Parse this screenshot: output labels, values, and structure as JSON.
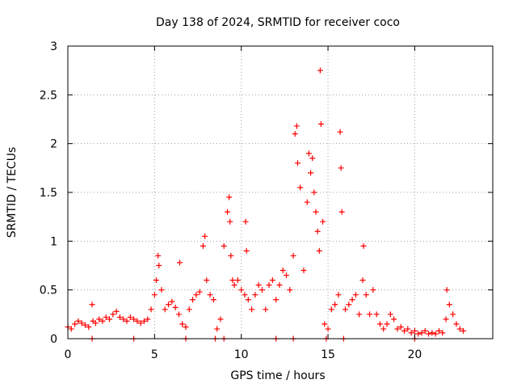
{
  "chart_data": {
    "type": "scatter",
    "title": "Day 138 of 2024, SRMTID for receiver coco",
    "xlabel": "GPS time / hours",
    "ylabel": "SRMTID / TECUs",
    "xlim": [
      0,
      24.5
    ],
    "ylim": [
      0,
      3
    ],
    "x_ticks": [
      0,
      5,
      10,
      15,
      20
    ],
    "x_tick_labels": [
      "0",
      "5",
      "10",
      "15",
      "20"
    ],
    "y_ticks": [
      0,
      0.5,
      1,
      1.5,
      2,
      2.5,
      3
    ],
    "y_tick_labels": [
      "0",
      "0.5",
      "1",
      "1.5",
      "2",
      "2.5",
      "3"
    ],
    "grid": true,
    "marker": "+",
    "color": "#ff0000",
    "series": [
      {
        "name": "SRMTID",
        "x": [
          0.0,
          0.2,
          0.4,
          0.6,
          0.8,
          1.0,
          1.2,
          1.4,
          1.45,
          1.6,
          1.8,
          2.0,
          2.2,
          2.4,
          2.6,
          2.8,
          3.0,
          3.2,
          3.4,
          3.6,
          3.8,
          4.0,
          4.2,
          4.4,
          4.6,
          4.8,
          5.0,
          5.1,
          5.2,
          5.25,
          5.4,
          5.6,
          5.8,
          6.0,
          6.2,
          6.4,
          6.45,
          6.6,
          6.8,
          7.0,
          7.2,
          7.4,
          7.6,
          7.8,
          7.9,
          8.0,
          8.2,
          8.4,
          8.6,
          8.8,
          9.0,
          9.2,
          9.3,
          9.35,
          9.4,
          9.5,
          9.6,
          9.8,
          10.0,
          10.2,
          10.25,
          10.3,
          10.4,
          10.6,
          10.8,
          11.0,
          11.2,
          11.4,
          11.6,
          11.8,
          12.0,
          12.2,
          12.4,
          12.6,
          12.8,
          13.0,
          13.1,
          13.2,
          13.25,
          13.4,
          13.6,
          13.8,
          13.9,
          14.0,
          14.1,
          14.2,
          14.3,
          14.4,
          14.5,
          14.55,
          14.6,
          14.7,
          14.8,
          15.0,
          15.2,
          15.4,
          15.6,
          15.7,
          15.75,
          15.8,
          16.0,
          16.2,
          16.4,
          16.6,
          16.8,
          17.0,
          17.05,
          17.2,
          17.4,
          17.6,
          17.8,
          18.0,
          18.2,
          18.4,
          18.6,
          18.8,
          19.0,
          19.2,
          19.4,
          19.6,
          19.8,
          20.0,
          20.2,
          20.4,
          20.6,
          20.8,
          21.0,
          21.2,
          21.4,
          21.6,
          21.8,
          21.85,
          22.0,
          22.2,
          22.4,
          22.6,
          22.8,
          1.4,
          3.8,
          6.8,
          8.5,
          9.0,
          12.0,
          13.0,
          14.9,
          15.9,
          20.0
        ],
        "y": [
          0.12,
          0.1,
          0.15,
          0.18,
          0.16,
          0.14,
          0.12,
          0.35,
          0.18,
          0.16,
          0.2,
          0.18,
          0.22,
          0.2,
          0.25,
          0.28,
          0.22,
          0.2,
          0.18,
          0.22,
          0.2,
          0.18,
          0.16,
          0.18,
          0.2,
          0.3,
          0.45,
          0.6,
          0.85,
          0.75,
          0.5,
          0.3,
          0.35,
          0.38,
          0.32,
          0.25,
          0.78,
          0.15,
          0.12,
          0.3,
          0.4,
          0.45,
          0.48,
          0.95,
          1.05,
          0.6,
          0.45,
          0.4,
          0.1,
          0.2,
          0.95,
          1.3,
          1.45,
          1.2,
          0.85,
          0.6,
          0.55,
          0.6,
          0.5,
          0.45,
          1.2,
          0.9,
          0.4,
          0.3,
          0.45,
          0.55,
          0.5,
          0.3,
          0.55,
          0.6,
          0.4,
          0.55,
          0.7,
          0.65,
          0.5,
          0.85,
          2.1,
          2.18,
          1.8,
          1.55,
          0.7,
          1.4,
          1.9,
          1.7,
          1.85,
          1.5,
          1.3,
          1.1,
          0.9,
          2.75,
          2.2,
          1.2,
          0.15,
          0.1,
          0.3,
          0.35,
          0.45,
          2.12,
          1.75,
          1.3,
          0.3,
          0.35,
          0.4,
          0.45,
          0.25,
          0.6,
          0.95,
          0.45,
          0.25,
          0.5,
          0.25,
          0.15,
          0.1,
          0.15,
          0.25,
          0.2,
          0.1,
          0.12,
          0.08,
          0.1,
          0.06,
          0.08,
          0.05,
          0.06,
          0.08,
          0.05,
          0.06,
          0.05,
          0.08,
          0.06,
          0.2,
          0.5,
          0.35,
          0.25,
          0.15,
          0.1,
          0.08,
          0.0,
          0.0,
          0.0,
          0.0,
          0.0,
          0.0,
          0.0,
          0.0,
          0.0,
          0.0
        ]
      }
    ]
  }
}
